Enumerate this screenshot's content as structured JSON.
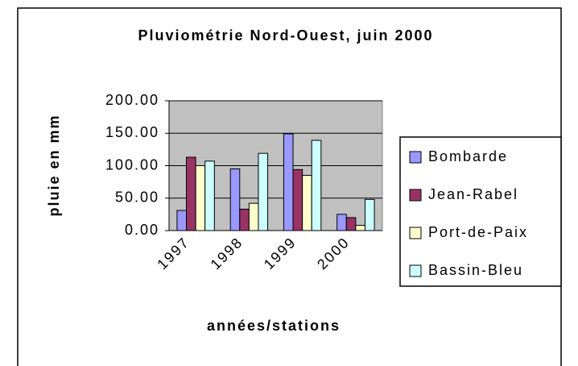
{
  "chart_data": {
    "type": "bar",
    "title": "Pluviométrie Nord-Ouest, juin 2000",
    "x_label": "années/stations",
    "y_label": "pluie en mm",
    "categories": [
      "1997",
      "1998",
      "1999",
      "2000"
    ],
    "series": [
      {
        "name": "Bombarde",
        "color": "#9999ff",
        "values": [
          31,
          95,
          149,
          25
        ]
      },
      {
        "name": "Jean-Rabel",
        "color": "#993366",
        "values": [
          113,
          33,
          94,
          20
        ]
      },
      {
        "name": "Port-de-Paix",
        "color": "#ffffcc",
        "values": [
          100,
          42,
          85,
          8
        ]
      },
      {
        "name": "Bassin-Bleu",
        "color": "#ccffff",
        "values": [
          107,
          119,
          139,
          48
        ]
      }
    ],
    "ylim": [
      0,
      200
    ],
    "yticks": [
      {
        "value": 0,
        "label": "0.00"
      },
      {
        "value": 50,
        "label": "50.00"
      },
      {
        "value": 100,
        "label": "100.00"
      },
      {
        "value": 150,
        "label": "150.00"
      },
      {
        "value": 200,
        "label": "200.00"
      }
    ],
    "grid": true,
    "legend": "right"
  }
}
